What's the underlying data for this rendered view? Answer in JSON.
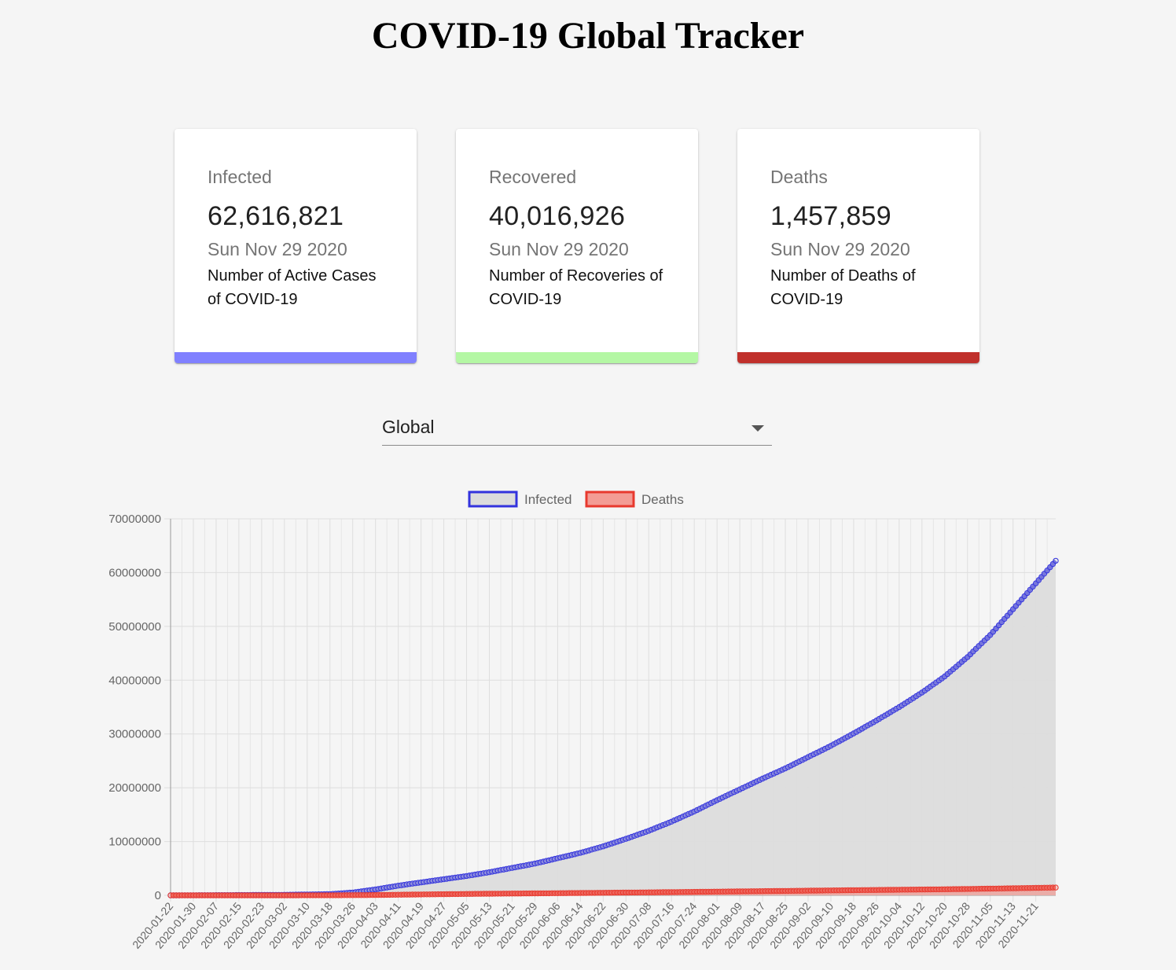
{
  "header": {
    "title": "COVID-19 Global Tracker"
  },
  "cards": [
    {
      "label": "Infected",
      "value": "62,616,821",
      "date": "Sun Nov 29 2020",
      "description": "Number of Active Cases of COVID-19",
      "color": "#8080ff"
    },
    {
      "label": "Recovered",
      "value": "40,016,926",
      "date": "Sun Nov 29 2020",
      "description": "Number of Recoveries of COVID-19",
      "color": "#b4f7a4"
    },
    {
      "label": "Deaths",
      "value": "1,457,859",
      "date": "Sun Nov 29 2020",
      "description": "Number of Deaths of COVID-19",
      "color": "#c0302b"
    }
  ],
  "country_select": {
    "value": "Global"
  },
  "chart_data": {
    "type": "line",
    "title": "",
    "xlabel": "",
    "ylabel": "",
    "legend_position": "top",
    "grid": true,
    "ylim": [
      0,
      70000000
    ],
    "y_ticks": [
      "0",
      "10000000",
      "20000000",
      "30000000",
      "40000000",
      "50000000",
      "60000000",
      "70000000"
    ],
    "x_start": "2020-01-22",
    "x_end": "2020-11-28",
    "x_tick_labels": [
      "2020-01-22",
      "2020-01-30",
      "2020-02-07",
      "2020-02-15",
      "2020-02-23",
      "2020-03-02",
      "2020-03-10",
      "2020-03-18",
      "2020-03-26",
      "2020-04-03",
      "2020-04-11",
      "2020-04-19",
      "2020-04-27",
      "2020-05-05",
      "2020-05-13",
      "2020-05-21",
      "2020-05-29",
      "2020-06-06",
      "2020-06-14",
      "2020-06-22",
      "2020-06-30",
      "2020-07-08",
      "2020-07-16",
      "2020-07-24",
      "2020-08-01",
      "2020-08-09",
      "2020-08-17",
      "2020-08-25",
      "2020-09-02",
      "2020-09-10",
      "2020-09-18",
      "2020-09-26",
      "2020-10-04",
      "2020-10-12",
      "2020-10-20",
      "2020-10-28",
      "2020-11-05",
      "2020-11-13",
      "2020-11-21"
    ],
    "series": [
      {
        "name": "Infected",
        "color": "#3333dd",
        "fill": "#dcdcdc",
        "points": [
          [
            "2020-01-22",
            0
          ],
          [
            "2020-03-01",
            90000
          ],
          [
            "2020-03-18",
            220000
          ],
          [
            "2020-03-26",
            530000
          ],
          [
            "2020-04-03",
            1100000
          ],
          [
            "2020-04-11",
            1800000
          ],
          [
            "2020-04-19",
            2400000
          ],
          [
            "2020-04-27",
            3000000
          ],
          [
            "2020-05-05",
            3600000
          ],
          [
            "2020-05-13",
            4300000
          ],
          [
            "2020-05-21",
            5100000
          ],
          [
            "2020-05-29",
            5900000
          ],
          [
            "2020-06-06",
            6900000
          ],
          [
            "2020-06-14",
            7900000
          ],
          [
            "2020-06-22",
            9100000
          ],
          [
            "2020-06-30",
            10500000
          ],
          [
            "2020-07-08",
            12000000
          ],
          [
            "2020-07-16",
            13700000
          ],
          [
            "2020-07-24",
            15600000
          ],
          [
            "2020-08-01",
            17700000
          ],
          [
            "2020-08-09",
            19700000
          ],
          [
            "2020-08-17",
            21700000
          ],
          [
            "2020-08-25",
            23600000
          ],
          [
            "2020-09-02",
            25700000
          ],
          [
            "2020-09-10",
            27800000
          ],
          [
            "2020-09-18",
            30100000
          ],
          [
            "2020-09-26",
            32500000
          ],
          [
            "2020-10-04",
            35000000
          ],
          [
            "2020-10-12",
            37700000
          ],
          [
            "2020-10-20",
            40700000
          ],
          [
            "2020-10-28",
            44300000
          ],
          [
            "2020-11-05",
            48400000
          ],
          [
            "2020-11-13",
            53200000
          ],
          [
            "2020-11-21",
            58000000
          ],
          [
            "2020-11-28",
            62200000
          ]
        ]
      },
      {
        "name": "Deaths",
        "color": "#e8392e",
        "fill": "#f28c84",
        "points": [
          [
            "2020-01-22",
            0
          ],
          [
            "2020-03-18",
            9000
          ],
          [
            "2020-04-03",
            60000
          ],
          [
            "2020-04-19",
            165000
          ],
          [
            "2020-05-05",
            258000
          ],
          [
            "2020-05-21",
            330000
          ],
          [
            "2020-06-06",
            400000
          ],
          [
            "2020-06-22",
            470000
          ],
          [
            "2020-07-08",
            550000
          ],
          [
            "2020-07-24",
            640000
          ],
          [
            "2020-08-09",
            735000
          ],
          [
            "2020-08-25",
            820000
          ],
          [
            "2020-09-10",
            910000
          ],
          [
            "2020-09-26",
            1000000
          ],
          [
            "2020-10-12",
            1080000
          ],
          [
            "2020-10-28",
            1180000
          ],
          [
            "2020-11-13",
            1310000
          ],
          [
            "2020-11-28",
            1450000
          ]
        ]
      }
    ]
  }
}
